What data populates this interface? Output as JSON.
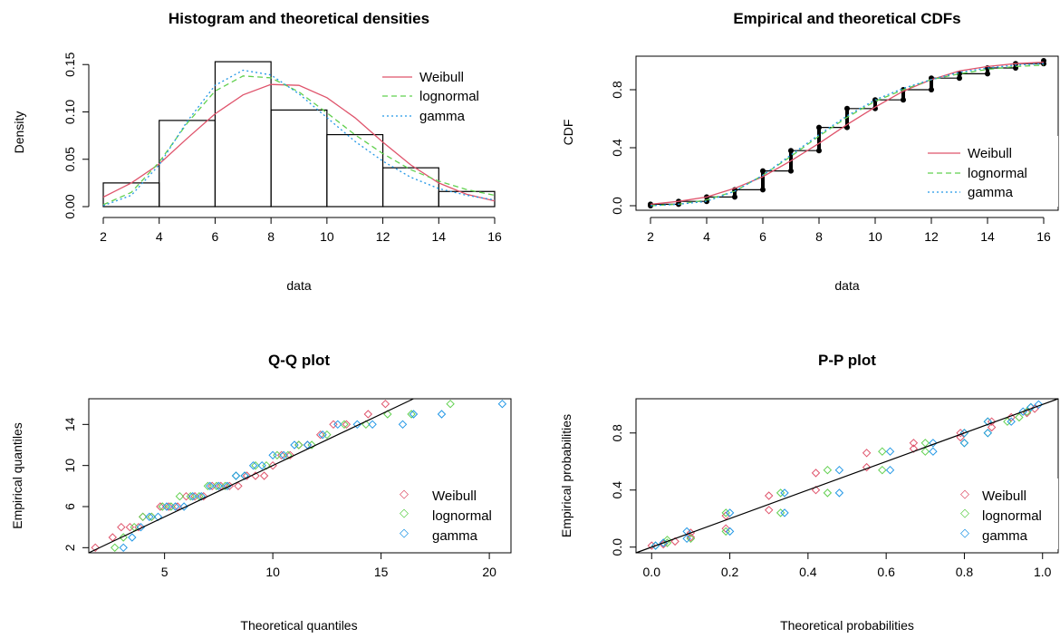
{
  "colors": {
    "weibull": "#DF536B",
    "lognormal": "#61D04F",
    "gamma": "#2297E6",
    "line": "#000000"
  },
  "chart_data": [
    {
      "type": "histogram",
      "title": "Histogram and theoretical densities",
      "xlabel": "data",
      "ylabel": "Density",
      "xlim": [
        2,
        16
      ],
      "ylim": [
        0,
        0.155
      ],
      "xticks": [
        2,
        4,
        6,
        8,
        10,
        12,
        14,
        16
      ],
      "yticks": [
        0.0,
        0.05,
        0.1,
        0.15
      ],
      "ytick_labels": [
        "0.00",
        "0.05",
        "0.10",
        "0.15"
      ],
      "bins": [
        {
          "x0": 2,
          "x1": 4,
          "density": 0.025
        },
        {
          "x0": 4,
          "x1": 6,
          "density": 0.091
        },
        {
          "x0": 6,
          "x1": 8,
          "density": 0.153
        },
        {
          "x0": 8,
          "x1": 10,
          "density": 0.102
        },
        {
          "x0": 10,
          "x1": 12,
          "density": 0.076
        },
        {
          "x0": 12,
          "x1": 14,
          "density": 0.041
        },
        {
          "x0": 14,
          "x1": 16,
          "density": 0.016
        }
      ],
      "series": [
        {
          "name": "Weibull",
          "color_key": "weibull",
          "dash": "solid",
          "x": [
            2,
            3,
            4,
            5,
            6,
            7,
            8,
            9,
            10,
            11,
            12,
            13,
            14,
            15,
            16
          ],
          "y": [
            0.01,
            0.025,
            0.045,
            0.072,
            0.098,
            0.118,
            0.129,
            0.128,
            0.115,
            0.094,
            0.068,
            0.044,
            0.025,
            0.013,
            0.006
          ]
        },
        {
          "name": "lognormal",
          "color_key": "lognormal",
          "dash": "dashed",
          "x": [
            2,
            3,
            4,
            5,
            6,
            7,
            8,
            9,
            10,
            11,
            12,
            13,
            14,
            15,
            16
          ],
          "y": [
            0.002,
            0.015,
            0.047,
            0.088,
            0.122,
            0.138,
            0.136,
            0.121,
            0.099,
            0.076,
            0.056,
            0.039,
            0.027,
            0.018,
            0.012
          ]
        },
        {
          "name": "gamma",
          "color_key": "gamma",
          "dash": "dotted",
          "x": [
            2,
            3,
            4,
            5,
            6,
            7,
            8,
            9,
            10,
            11,
            12,
            13,
            14,
            15,
            16
          ],
          "y": [
            0.001,
            0.012,
            0.044,
            0.09,
            0.128,
            0.144,
            0.139,
            0.119,
            0.094,
            0.069,
            0.048,
            0.031,
            0.019,
            0.012,
            0.007
          ]
        }
      ],
      "legend": "top-right"
    },
    {
      "type": "line",
      "title": "Empirical and theoretical CDFs",
      "xlabel": "data",
      "ylabel": "CDF",
      "xlim": [
        2,
        16
      ],
      "ylim": [
        0,
        1
      ],
      "xticks": [
        2,
        4,
        6,
        8,
        10,
        12,
        14,
        16
      ],
      "yticks": [
        0.0,
        0.4,
        0.8
      ],
      "ytick_labels": [
        "0.0",
        "0.4",
        "0.8"
      ],
      "empirical": {
        "x": [
          2,
          3,
          4,
          5,
          6,
          7,
          8,
          9,
          10,
          11,
          12,
          13,
          14,
          15,
          16
        ],
        "y_low": [
          0.0,
          0.01,
          0.03,
          0.06,
          0.11,
          0.24,
          0.38,
          0.54,
          0.67,
          0.73,
          0.8,
          0.88,
          0.91,
          0.95,
          0.98
        ],
        "y_high": [
          0.01,
          0.03,
          0.06,
          0.11,
          0.24,
          0.38,
          0.54,
          0.67,
          0.73,
          0.8,
          0.88,
          0.91,
          0.95,
          0.98,
          1.0
        ]
      },
      "series": [
        {
          "name": "Weibull",
          "color_key": "weibull",
          "dash": "solid",
          "x": [
            2,
            3,
            4,
            5,
            6,
            7,
            8,
            9,
            10,
            11,
            12,
            13,
            14,
            15,
            16
          ],
          "y": [
            0.01,
            0.03,
            0.06,
            0.12,
            0.2,
            0.31,
            0.43,
            0.56,
            0.68,
            0.79,
            0.87,
            0.93,
            0.96,
            0.98,
            0.99
          ]
        },
        {
          "name": "lognormal",
          "color_key": "lognormal",
          "dash": "dashed",
          "x": [
            2,
            3,
            4,
            5,
            6,
            7,
            8,
            9,
            10,
            11,
            12,
            13,
            14,
            15,
            16
          ],
          "y": [
            0.0,
            0.01,
            0.04,
            0.1,
            0.21,
            0.34,
            0.48,
            0.61,
            0.72,
            0.8,
            0.87,
            0.91,
            0.94,
            0.96,
            0.97
          ]
        },
        {
          "name": "gamma",
          "color_key": "gamma",
          "dash": "dotted",
          "x": [
            2,
            3,
            4,
            5,
            6,
            7,
            8,
            9,
            10,
            11,
            12,
            13,
            14,
            15,
            16
          ],
          "y": [
            0.0,
            0.01,
            0.03,
            0.1,
            0.21,
            0.35,
            0.49,
            0.62,
            0.73,
            0.81,
            0.87,
            0.92,
            0.95,
            0.97,
            0.98
          ]
        }
      ],
      "legend": "bottom-right"
    },
    {
      "type": "scatter",
      "title": "Q-Q plot",
      "xlabel": "Theoretical quantiles",
      "ylabel": "Empirical quantiles",
      "xlim": [
        1.5,
        21
      ],
      "ylim": [
        1.5,
        16.5
      ],
      "xticks": [
        5,
        10,
        15,
        20
      ],
      "yticks": [
        2,
        6,
        10,
        14
      ],
      "ref_line": [
        [
          1.5,
          1.5
        ],
        [
          16.5,
          16.5
        ]
      ],
      "series": [
        {
          "name": "Weibull",
          "color_key": "weibull",
          "points": [
            [
              1.8,
              2
            ],
            [
              2.6,
              3
            ],
            [
              3.0,
              4
            ],
            [
              3.4,
              4
            ],
            [
              3.8,
              4
            ],
            [
              4.0,
              5
            ],
            [
              4.4,
              5
            ],
            [
              4.8,
              6
            ],
            [
              5.2,
              6
            ],
            [
              5.6,
              6
            ],
            [
              6.0,
              7
            ],
            [
              6.4,
              7
            ],
            [
              6.8,
              7
            ],
            [
              7.2,
              8
            ],
            [
              7.6,
              8
            ],
            [
              8.0,
              8
            ],
            [
              8.4,
              8
            ],
            [
              8.8,
              9
            ],
            [
              9.2,
              9
            ],
            [
              9.6,
              9
            ],
            [
              10.0,
              10
            ],
            [
              10.4,
              11
            ],
            [
              10.8,
              11
            ],
            [
              11.2,
              12
            ],
            [
              11.6,
              12
            ],
            [
              12.2,
              13
            ],
            [
              12.8,
              14
            ],
            [
              13.4,
              14
            ],
            [
              14.4,
              15
            ],
            [
              15.2,
              16
            ]
          ]
        },
        {
          "name": "lognormal",
          "color_key": "lognormal",
          "points": [
            [
              2.7,
              2
            ],
            [
              3.1,
              3
            ],
            [
              3.6,
              4
            ],
            [
              4.0,
              5
            ],
            [
              4.4,
              5
            ],
            [
              4.9,
              6
            ],
            [
              5.3,
              6
            ],
            [
              5.7,
              7
            ],
            [
              6.2,
              7
            ],
            [
              6.6,
              7
            ],
            [
              7.0,
              8
            ],
            [
              7.4,
              8
            ],
            [
              7.8,
              8
            ],
            [
              8.3,
              9
            ],
            [
              8.7,
              9
            ],
            [
              9.2,
              10
            ],
            [
              9.7,
              10
            ],
            [
              10.2,
              11
            ],
            [
              10.7,
              11
            ],
            [
              11.2,
              12
            ],
            [
              11.8,
              12
            ],
            [
              12.5,
              13
            ],
            [
              13.3,
              14
            ],
            [
              14.3,
              14
            ],
            [
              15.3,
              15
            ],
            [
              16.4,
              15
            ],
            [
              18.2,
              16
            ]
          ]
        },
        {
          "name": "gamma",
          "color_key": "gamma",
          "points": [
            [
              3.1,
              2
            ],
            [
              3.5,
              3
            ],
            [
              3.9,
              4
            ],
            [
              4.3,
              5
            ],
            [
              4.7,
              5
            ],
            [
              5.1,
              6
            ],
            [
              5.5,
              6
            ],
            [
              5.9,
              6
            ],
            [
              6.3,
              7
            ],
            [
              6.7,
              7
            ],
            [
              7.1,
              8
            ],
            [
              7.5,
              8
            ],
            [
              7.9,
              8
            ],
            [
              8.3,
              9
            ],
            [
              8.7,
              9
            ],
            [
              9.1,
              10
            ],
            [
              9.5,
              10
            ],
            [
              10.0,
              11
            ],
            [
              10.5,
              11
            ],
            [
              11.0,
              12
            ],
            [
              11.6,
              12
            ],
            [
              12.3,
              13
            ],
            [
              13.0,
              14
            ],
            [
              13.9,
              14
            ],
            [
              14.6,
              14
            ],
            [
              16.0,
              14
            ],
            [
              16.5,
              15
            ],
            [
              17.8,
              15
            ],
            [
              20.6,
              16
            ]
          ]
        }
      ],
      "legend": "bottom-right"
    },
    {
      "type": "scatter",
      "title": "P-P plot",
      "xlabel": "Theoretical probabilities",
      "ylabel": "Empirical probabilities",
      "xlim": [
        -0.04,
        1.04
      ],
      "ylim": [
        -0.04,
        1.04
      ],
      "xticks": [
        0.0,
        0.2,
        0.4,
        0.6,
        0.8,
        1.0
      ],
      "xtick_labels": [
        "0.0",
        "0.2",
        "0.4",
        "0.6",
        "0.8",
        "1.0"
      ],
      "yticks": [
        0.0,
        0.4,
        0.8
      ],
      "ytick_labels": [
        "0.0",
        "0.4",
        "0.8"
      ],
      "ref_line": [
        [
          -0.04,
          -0.04
        ],
        [
          1.04,
          1.04
        ]
      ],
      "series": [
        {
          "name": "Weibull",
          "color_key": "weibull",
          "points": [
            [
              0.0,
              0.01
            ],
            [
              0.03,
              0.02
            ],
            [
              0.06,
              0.04
            ],
            [
              0.1,
              0.07
            ],
            [
              0.1,
              0.1
            ],
            [
              0.19,
              0.13
            ],
            [
              0.19,
              0.22
            ],
            [
              0.3,
              0.26
            ],
            [
              0.3,
              0.36
            ],
            [
              0.42,
              0.4
            ],
            [
              0.42,
              0.52
            ],
            [
              0.55,
              0.56
            ],
            [
              0.55,
              0.66
            ],
            [
              0.67,
              0.69
            ],
            [
              0.67,
              0.73
            ],
            [
              0.79,
              0.77
            ],
            [
              0.79,
              0.8
            ],
            [
              0.87,
              0.84
            ],
            [
              0.87,
              0.88
            ],
            [
              0.92,
              0.91
            ],
            [
              0.96,
              0.94
            ],
            [
              0.98,
              0.97
            ]
          ]
        },
        {
          "name": "lognormal",
          "color_key": "lognormal",
          "points": [
            [
              0.01,
              0.01
            ],
            [
              0.04,
              0.03
            ],
            [
              0.04,
              0.05
            ],
            [
              0.1,
              0.06
            ],
            [
              0.19,
              0.11
            ],
            [
              0.19,
              0.24
            ],
            [
              0.33,
              0.24
            ],
            [
              0.33,
              0.38
            ],
            [
              0.45,
              0.38
            ],
            [
              0.45,
              0.54
            ],
            [
              0.59,
              0.54
            ],
            [
              0.59,
              0.67
            ],
            [
              0.7,
              0.67
            ],
            [
              0.7,
              0.73
            ],
            [
              0.8,
              0.73
            ],
            [
              0.8,
              0.8
            ],
            [
              0.86,
              0.8
            ],
            [
              0.86,
              0.88
            ],
            [
              0.91,
              0.88
            ],
            [
              0.94,
              0.91
            ],
            [
              0.96,
              0.95
            ],
            [
              0.97,
              0.98
            ]
          ]
        },
        {
          "name": "gamma",
          "color_key": "gamma",
          "points": [
            [
              0.01,
              0.01
            ],
            [
              0.03,
              0.03
            ],
            [
              0.09,
              0.06
            ],
            [
              0.09,
              0.11
            ],
            [
              0.2,
              0.11
            ],
            [
              0.2,
              0.24
            ],
            [
              0.34,
              0.24
            ],
            [
              0.34,
              0.38
            ],
            [
              0.48,
              0.38
            ],
            [
              0.48,
              0.54
            ],
            [
              0.61,
              0.54
            ],
            [
              0.61,
              0.67
            ],
            [
              0.72,
              0.67
            ],
            [
              0.72,
              0.73
            ],
            [
              0.8,
              0.73
            ],
            [
              0.8,
              0.8
            ],
            [
              0.86,
              0.8
            ],
            [
              0.86,
              0.88
            ],
            [
              0.92,
              0.88
            ],
            [
              0.95,
              0.95
            ],
            [
              0.97,
              0.98
            ],
            [
              0.99,
              1.0
            ]
          ]
        }
      ],
      "legend": "bottom-right"
    }
  ]
}
